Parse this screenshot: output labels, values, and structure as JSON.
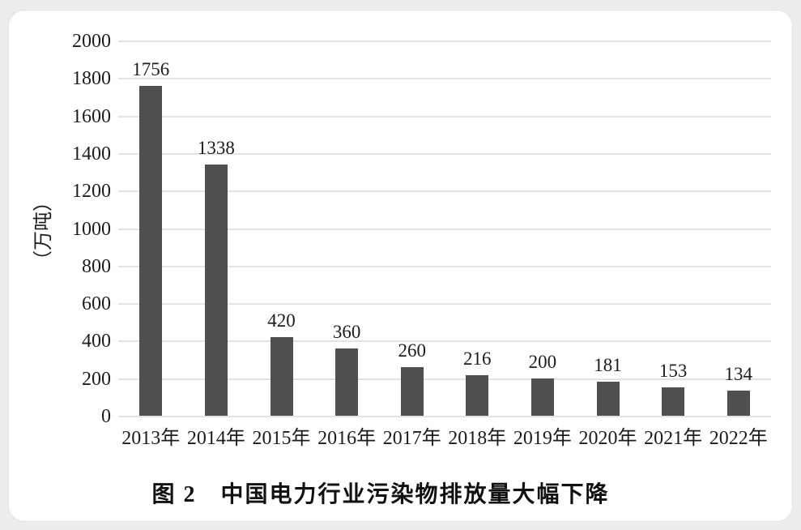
{
  "chart_data": {
    "type": "bar",
    "categories": [
      "2013年",
      "2014年",
      "2015年",
      "2016年",
      "2017年",
      "2018年",
      "2019年",
      "2020年",
      "2021年",
      "2022年"
    ],
    "values": [
      1756,
      1338,
      420,
      360,
      260,
      216,
      200,
      181,
      153,
      134
    ],
    "title": "图 2　中国电力行业污染物排放量大幅下降",
    "xlabel": "",
    "ylabel": "（万吨）",
    "ylim": [
      0,
      2000
    ],
    "ytick_step": 200,
    "grid": true,
    "legend": "none",
    "bar_color": "#4f4f4f",
    "gridline_color": "#e3e3e3",
    "text_color": "#1c1c1c",
    "data_labels": true
  }
}
